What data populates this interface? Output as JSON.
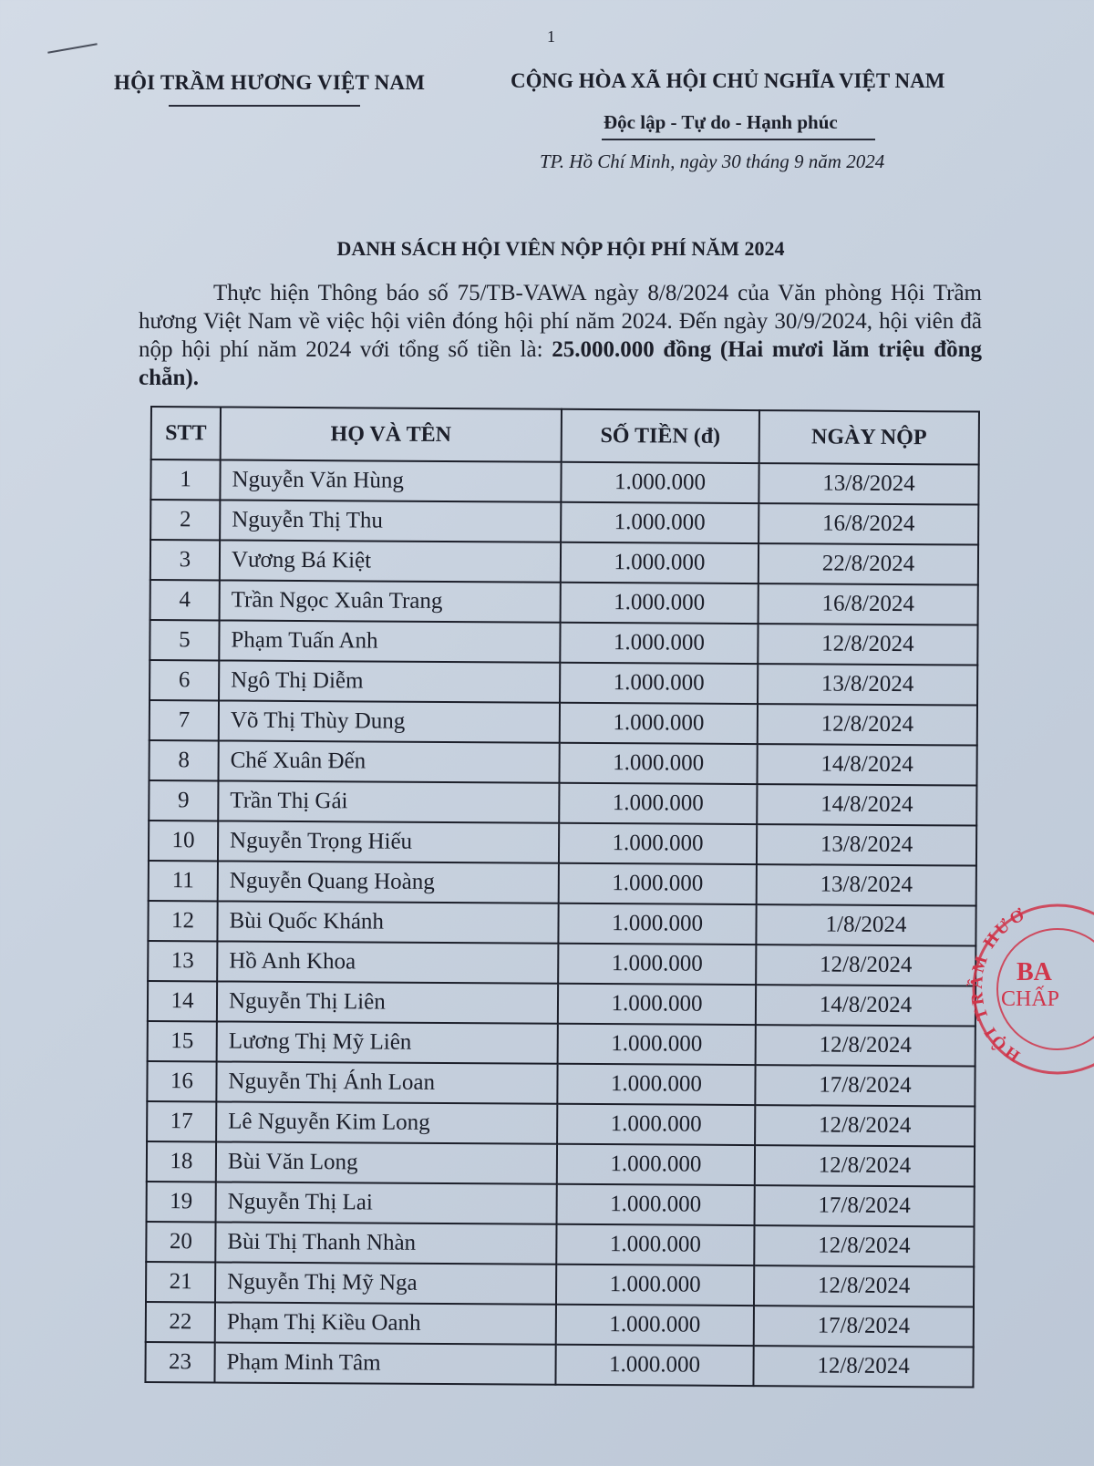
{
  "page_number": "1",
  "header": {
    "organization": "HỘI TRẦM HƯƠNG VIỆT NAM",
    "nation": "CỘNG HÒA XÃ HỘI CHỦ NGHĨA VIỆT NAM",
    "motto": "Độc lập - Tự do - Hạnh phúc",
    "place_date": "TP. Hồ Chí Minh, ngày 30 tháng 9 năm 2024"
  },
  "title": "DANH SÁCH HỘI VIÊN NỘP HỘI PHÍ NĂM 2024",
  "intro": {
    "text": "Thực hiện Thông báo số 75/TB-VAWA ngày 8/8/2024 của Văn phòng Hội Trầm hương Việt Nam về việc hội viên đóng hội phí năm 2024. Đến ngày 30/9/2024, hội viên đã nộp hội phí năm 2024 với tổng số tiền là: ",
    "total_bold": "25.000.000 đồng (Hai mươi lăm triệu đồng chẵn)."
  },
  "table": {
    "headers": [
      "STT",
      "HỌ VÀ TÊN",
      "SỐ TIỀN (đ)",
      "NGÀY NỘP"
    ],
    "rows": [
      [
        "1",
        "Nguyễn Văn Hùng",
        "1.000.000",
        "13/8/2024"
      ],
      [
        "2",
        "Nguyễn Thị Thu",
        "1.000.000",
        "16/8/2024"
      ],
      [
        "3",
        "Vương Bá Kiệt",
        "1.000.000",
        "22/8/2024"
      ],
      [
        "4",
        "Trần Ngọc Xuân Trang",
        "1.000.000",
        "16/8/2024"
      ],
      [
        "5",
        "Phạm Tuấn Anh",
        "1.000.000",
        "12/8/2024"
      ],
      [
        "6",
        "Ngô Thị Diễm",
        "1.000.000",
        "13/8/2024"
      ],
      [
        "7",
        "Võ Thị Thùy Dung",
        "1.000.000",
        "12/8/2024"
      ],
      [
        "8",
        "Chế Xuân Đến",
        "1.000.000",
        "14/8/2024"
      ],
      [
        "9",
        "Trần Thị Gái",
        "1.000.000",
        "14/8/2024"
      ],
      [
        "10",
        "Nguyễn Trọng Hiếu",
        "1.000.000",
        "13/8/2024"
      ],
      [
        "11",
        "Nguyễn Quang Hoàng",
        "1.000.000",
        "13/8/2024"
      ],
      [
        "12",
        "Bùi Quốc Khánh",
        "1.000.000",
        "1/8/2024"
      ],
      [
        "13",
        "Hồ Anh Khoa",
        "1.000.000",
        "12/8/2024"
      ],
      [
        "14",
        "Nguyễn Thị Liên",
        "1.000.000",
        "14/8/2024"
      ],
      [
        "15",
        "Lương Thị Mỹ Liên",
        "1.000.000",
        "12/8/2024"
      ],
      [
        "16",
        "Nguyễn Thị Ánh Loan",
        "1.000.000",
        "17/8/2024"
      ],
      [
        "17",
        "Lê Nguyễn Kim Long",
        "1.000.000",
        "12/8/2024"
      ],
      [
        "18",
        "Bùi Văn Long",
        "1.000.000",
        "12/8/2024"
      ],
      [
        "19",
        "Nguyễn Thị Lai",
        "1.000.000",
        "17/8/2024"
      ],
      [
        "20",
        "Bùi Thị Thanh Nhàn",
        "1.000.000",
        "12/8/2024"
      ],
      [
        "21",
        "Nguyễn Thị Mỹ Nga",
        "1.000.000",
        "12/8/2024"
      ],
      [
        "22",
        "Phạm Thị Kiều Oanh",
        "1.000.000",
        "17/8/2024"
      ],
      [
        "23",
        "Phạm Minh Tâm",
        "1.000.000",
        "12/8/2024"
      ]
    ]
  },
  "stamp": {
    "outer_text": "HỘI TRẦM HƯƠ",
    "inner_text_1": "BA",
    "inner_text_2": "CHẤP",
    "color": "#d0354a"
  }
}
